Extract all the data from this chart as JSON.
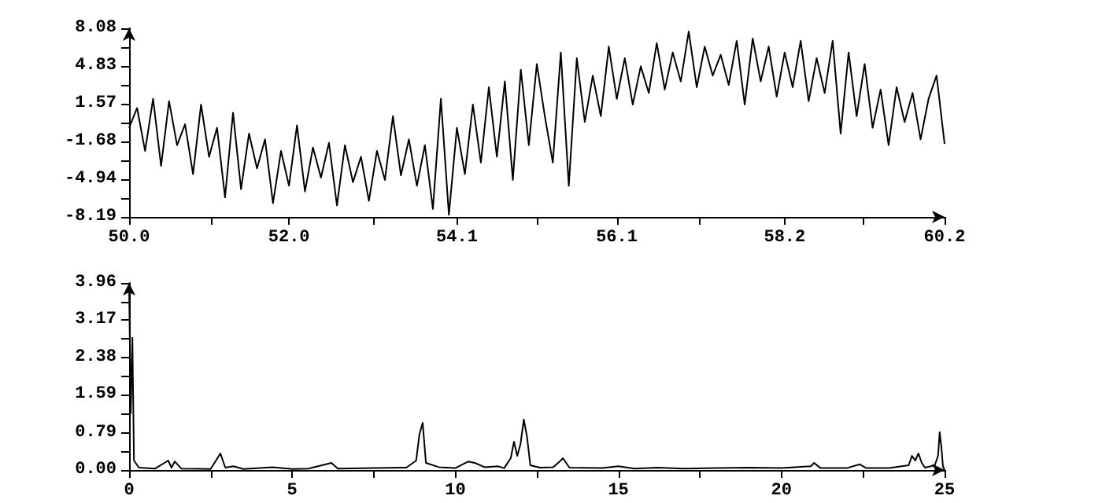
{
  "chart_data": [
    {
      "type": "line",
      "x": [
        50.0,
        50.1,
        50.2,
        50.3,
        50.4,
        50.5,
        50.6,
        50.7,
        50.8,
        50.9,
        51.0,
        51.1,
        51.2,
        51.3,
        51.4,
        51.5,
        51.6,
        51.7,
        51.8,
        51.9,
        52.0,
        52.1,
        52.2,
        52.3,
        52.4,
        52.5,
        52.6,
        52.7,
        52.8,
        52.9,
        53.0,
        53.1,
        53.2,
        53.3,
        53.4,
        53.5,
        53.6,
        53.7,
        53.8,
        53.9,
        54.0,
        54.1,
        54.2,
        54.3,
        54.4,
        54.5,
        54.6,
        54.7,
        54.8,
        54.9,
        55.0,
        55.1,
        55.2,
        55.3,
        55.4,
        55.5,
        55.6,
        55.7,
        55.8,
        55.9,
        56.0,
        56.1,
        56.2,
        56.3,
        56.4,
        56.5,
        56.6,
        56.7,
        56.8,
        56.9,
        57.0,
        57.1,
        57.2,
        57.3,
        57.4,
        57.5,
        57.6,
        57.7,
        57.8,
        57.9,
        58.0,
        58.1,
        58.2,
        58.3,
        58.4,
        58.5,
        58.6,
        58.7,
        58.8,
        58.9,
        59.0,
        59.1,
        59.2,
        59.3,
        59.4,
        59.5,
        59.6,
        59.7,
        59.8,
        59.9,
        60.0,
        60.1,
        60.2
      ],
      "series": [
        {
          "color": "#000000",
          "values": [
            -0.5,
            1.2,
            -2.5,
            2.0,
            -3.8,
            1.8,
            -2.0,
            -0.2,
            -4.5,
            1.5,
            -3.0,
            -0.5,
            -6.5,
            0.8,
            -5.8,
            -1.0,
            -4.0,
            -1.5,
            -7.0,
            -2.5,
            -5.5,
            -0.3,
            -6.0,
            -2.2,
            -4.8,
            -1.8,
            -7.2,
            -2.0,
            -5.2,
            -3.0,
            -6.8,
            -2.5,
            -5.0,
            0.5,
            -4.6,
            -1.5,
            -5.5,
            -2.0,
            -7.5,
            2.0,
            -8.0,
            -0.5,
            -4.5,
            1.5,
            -3.5,
            3.0,
            -3.0,
            3.5,
            -5.0,
            4.5,
            -2.0,
            5.0,
            0.5,
            -3.5,
            6.0,
            -5.5,
            5.5,
            0.0,
            4.0,
            0.5,
            6.5,
            2.0,
            5.5,
            1.5,
            4.8,
            2.5,
            6.8,
            2.8,
            6.0,
            3.5,
            7.8,
            3.0,
            6.5,
            4.0,
            5.8,
            3.2,
            7.0,
            1.5,
            7.2,
            3.5,
            6.5,
            2.2,
            6.0,
            3.0,
            7.0,
            1.8,
            5.5,
            2.5,
            7.0,
            -1.0,
            6.0,
            0.5,
            5.0,
            -0.5,
            2.8,
            -2.0,
            3.0,
            0.0,
            2.5,
            -1.5,
            2.0,
            4.0,
            -1.9
          ]
        }
      ],
      "xlim": [
        50.0,
        60.2
      ],
      "xticks": [
        {
          "value": 50.0,
          "label": "50.0"
        },
        {
          "value": 51.02,
          "label": null
        },
        {
          "value": 52.0,
          "label": "52.0"
        },
        {
          "value": 53.06,
          "label": null
        },
        {
          "value": 54.1,
          "label": "54.1"
        },
        {
          "value": 55.1,
          "label": null
        },
        {
          "value": 56.1,
          "label": "56.1"
        },
        {
          "value": 57.14,
          "label": null
        },
        {
          "value": 58.2,
          "label": "58.2"
        },
        {
          "value": 59.18,
          "label": null
        },
        {
          "value": 60.2,
          "label": "60.2"
        }
      ],
      "ylim": [
        -8.19,
        8.08
      ],
      "yticks": [
        -8.19,
        {
          "value": -6.563,
          "label": null
        },
        -4.94,
        {
          "value": -3.309,
          "label": null
        },
        -1.68,
        {
          "value": -0.055,
          "label": null
        },
        1.57,
        {
          "value": 3.199,
          "label": null
        },
        4.83,
        {
          "value": 6.453,
          "label": null
        },
        8.08
      ],
      "grid": false
    },
    {
      "type": "line",
      "x": [
        0,
        0.05,
        0.1,
        0.15,
        0.3,
        0.8,
        1.2,
        1.3,
        1.4,
        1.6,
        2.5,
        2.8,
        2.95,
        3.2,
        3.5,
        4.4,
        5,
        5.5,
        6.2,
        6.4,
        7.5,
        8.5,
        8.8,
        8.9,
        9.0,
        9.1,
        9.5,
        10,
        10.4,
        10.6,
        10.9,
        11.3,
        11.5,
        11.7,
        11.8,
        11.9,
        12.0,
        12.1,
        12.2,
        12.3,
        12.6,
        13.0,
        13.2,
        13.3,
        13.5,
        14.5,
        15.0,
        15.5,
        16.2,
        17,
        18,
        19,
        20,
        20.9,
        21.0,
        21.2,
        22,
        22.4,
        22.6,
        23.3,
        23.9,
        24.0,
        24.1,
        24.2,
        24.3,
        24.4,
        24.7,
        24.8,
        24.85,
        24.9,
        24.95,
        25
      ],
      "series": [
        {
          "color": "#000000",
          "values": [
            3.96,
            1.2,
            2.8,
            0.2,
            0.05,
            0.03,
            0.2,
            0.05,
            0.18,
            0.03,
            0.02,
            0.35,
            0.05,
            0.08,
            0.02,
            0.06,
            0.02,
            0.03,
            0.15,
            0.03,
            0.04,
            0.05,
            0.2,
            0.75,
            1.0,
            0.15,
            0.06,
            0.04,
            0.18,
            0.15,
            0.06,
            0.08,
            0.04,
            0.25,
            0.6,
            0.3,
            0.55,
            1.07,
            0.7,
            0.1,
            0.05,
            0.06,
            0.18,
            0.25,
            0.05,
            0.04,
            0.08,
            0.03,
            0.05,
            0.03,
            0.04,
            0.05,
            0.04,
            0.08,
            0.15,
            0.04,
            0.04,
            0.12,
            0.04,
            0.04,
            0.1,
            0.3,
            0.2,
            0.35,
            0.15,
            0.05,
            0.1,
            0.3,
            0.8,
            0.5,
            0.08,
            0
          ]
        }
      ],
      "xlim": [
        0,
        25
      ],
      "xticks": [
        0,
        {
          "value": 2.5,
          "label": null
        },
        5,
        {
          "value": 7.5,
          "label": null
        },
        10,
        {
          "value": 12.5,
          "label": null
        },
        15,
        {
          "value": 17.5,
          "label": null
        },
        20,
        {
          "value": 22.5,
          "label": null
        },
        25
      ],
      "ylim": [
        0,
        3.96
      ],
      "yticks": [
        {
          "value": 0,
          "label": "0.00"
        },
        {
          "value": 0.396,
          "label": null
        },
        0.79,
        {
          "value": 1.188,
          "label": null
        },
        1.59,
        {
          "value": 1.98,
          "label": null
        },
        2.38,
        {
          "value": 2.772,
          "label": null
        },
        3.17,
        {
          "value": 3.564,
          "label": null
        },
        3.96
      ],
      "grid": false
    }
  ]
}
